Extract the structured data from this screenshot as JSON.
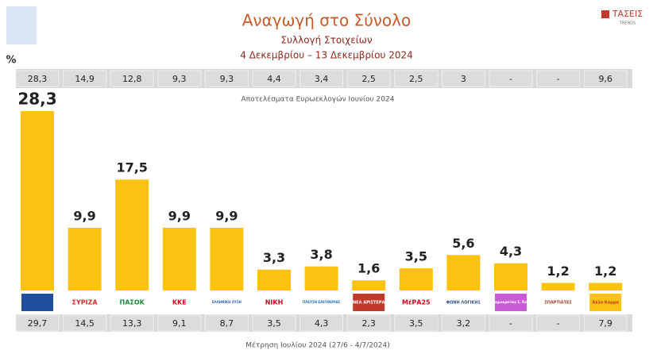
{
  "brand": {
    "name": "ΤΑΣΕΙΣ",
    "tagline": "TRENDS"
  },
  "chart_data": {
    "type": "bar",
    "title": "Αναγωγή στο Σύνολο",
    "subtitle": "Συλλογή Στοιχείων",
    "period": "4 Δεκεμβρίου – 13 Δεκεμβρίου 2024",
    "unit": "%",
    "color": "#fbc311",
    "categories": [
      null,
      "ΣΥΡΙΖΑ",
      "ΠΑΣΟΚ",
      "ΚΚΕ",
      "ΕΛΛΗΝΙΚΗ ΛΥΣΗ",
      "ΝΙΚΗ",
      "ΠΛΕΥΣΗ ΕΛΕΥΘΕΡΙΑΣ",
      "ΝΕΑ ΑΡΙΣΤΕΡΑ",
      "ΜέΡΑ25",
      "ΦΩΝΗ ΛΟΓΙΚΗΣ",
      "Κίνημα Δημοκρατίας Σ. Κασσελάκη",
      "ΣΠΑΡΤΙΑΤΕΣ",
      "Άλλο Κόμμα"
    ],
    "values": [
      28.3,
      9.9,
      17.5,
      9.9,
      9.9,
      3.3,
      3.8,
      1.6,
      3.5,
      5.6,
      4.3,
      1.2,
      1.2
    ],
    "value_labels": [
      "28,3",
      "9,9",
      "17,5",
      "9,9",
      "9,9",
      "3,3",
      "3,8",
      "1,6",
      "3,5",
      "5,6",
      "4,3",
      "1,2",
      "1,2"
    ],
    "top_row": {
      "label": "Αποτελέσματα Ευρωεκλογών Ιουνίου 2024",
      "values": [
        "28,3",
        "14,9",
        "12,8",
        "9,3",
        "9,3",
        "4,4",
        "3,4",
        "2,5",
        "2,5",
        "3",
        "-",
        "-",
        "9,6"
      ]
    },
    "bottom_row": {
      "label": "Μέτρηση Ιουλίου 2024 (27/6 - 4/7/2024)",
      "values": [
        "29,7",
        "14,5",
        "13,3",
        "9,1",
        "8,7",
        "3,5",
        "4,3",
        "2,3",
        "3,5",
        "3,2",
        "-",
        "-",
        "7,9"
      ]
    }
  }
}
